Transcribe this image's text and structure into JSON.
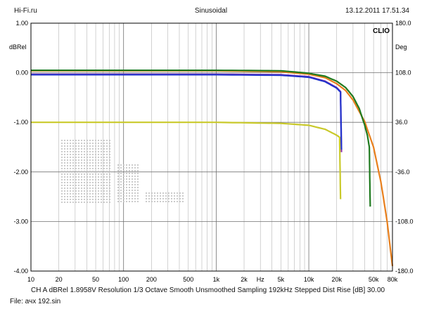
{
  "header": {
    "site": "Hi-Fi.ru",
    "mode": "Sinusoidal",
    "datetime": "13.12.2011 17.51.34"
  },
  "chart_data": {
    "type": "line",
    "xscale": "log",
    "xlim": [
      10,
      80000
    ],
    "ylim": [
      -4,
      1
    ],
    "y2lim": [
      -180,
      180
    ],
    "grid": true,
    "x_ticks": [
      {
        "v": 10,
        "label": "10"
      },
      {
        "v": 20,
        "label": "20"
      },
      {
        "v": 50,
        "label": "50"
      },
      {
        "v": 100,
        "label": "100"
      },
      {
        "v": 200,
        "label": "200"
      },
      {
        "v": 500,
        "label": "500"
      },
      {
        "v": 1000,
        "label": "1k"
      },
      {
        "v": 2000,
        "label": "2k"
      },
      {
        "v": 3000,
        "label": "Hz"
      },
      {
        "v": 5000,
        "label": "5k"
      },
      {
        "v": 10000,
        "label": "10k"
      },
      {
        "v": 20000,
        "label": "20k"
      },
      {
        "v": 50000,
        "label": "50k"
      },
      {
        "v": 80000,
        "label": "80k"
      }
    ],
    "y_ticks": [
      {
        "v": 1,
        "label": "1.00"
      },
      {
        "v": 0,
        "label": "0.00"
      },
      {
        "v": -1,
        "label": "-1.00"
      },
      {
        "v": -2,
        "label": "-2.00"
      },
      {
        "v": -3,
        "label": "-3.00"
      },
      {
        "v": -4,
        "label": "-4.00"
      }
    ],
    "y2_ticks": [
      {
        "v": 180,
        "label": "180.0"
      },
      {
        "v": 108,
        "label": "108.0"
      },
      {
        "v": 36,
        "label": "36.0"
      },
      {
        "v": -36,
        "label": "-36.0"
      },
      {
        "v": -108,
        "label": "-108.0"
      },
      {
        "v": -180,
        "label": "-180.0"
      }
    ],
    "ylabel": "dBRel",
    "y2label": "Deg",
    "brand": "CLIO",
    "series": [
      {
        "color": "#e87f1c",
        "points": [
          [
            10,
            0.04
          ],
          [
            1000,
            0.04
          ],
          [
            5000,
            0.02
          ],
          [
            10000,
            -0.03
          ],
          [
            15000,
            -0.1
          ],
          [
            20000,
            -0.22
          ],
          [
            25000,
            -0.36
          ],
          [
            30000,
            -0.55
          ],
          [
            40000,
            -0.98
          ],
          [
            50000,
            -1.5
          ],
          [
            60000,
            -2.2
          ],
          [
            70000,
            -3.0
          ],
          [
            80000,
            -3.9
          ]
        ]
      },
      {
        "color": "#1f7a1f",
        "points": [
          [
            10,
            0.05
          ],
          [
            1000,
            0.05
          ],
          [
            5000,
            0.04
          ],
          [
            10000,
            -0.01
          ],
          [
            15000,
            -0.07
          ],
          [
            20000,
            -0.17
          ],
          [
            25000,
            -0.3
          ],
          [
            30000,
            -0.48
          ],
          [
            35000,
            -0.72
          ],
          [
            40000,
            -1.05
          ],
          [
            43000,
            -1.27
          ],
          [
            45000,
            -1.5
          ],
          [
            46000,
            -2.7
          ]
        ]
      },
      {
        "color": "#8b2fa8",
        "points": [
          [
            10,
            -0.03
          ],
          [
            1000,
            -0.03
          ],
          [
            5000,
            -0.04
          ],
          [
            10000,
            -0.08
          ],
          [
            15000,
            -0.17
          ],
          [
            20000,
            -0.3
          ],
          [
            22000,
            -0.38
          ],
          [
            22500,
            -1.6
          ]
        ]
      },
      {
        "color": "#2233cc",
        "points": [
          [
            10,
            -0.04
          ],
          [
            1000,
            -0.04
          ],
          [
            5000,
            -0.05
          ],
          [
            10000,
            -0.09
          ],
          [
            15000,
            -0.18
          ],
          [
            20000,
            -0.31
          ],
          [
            22000,
            -0.39
          ],
          [
            22500,
            -1.55
          ]
        ]
      },
      {
        "color": "#c9c92a",
        "points": [
          [
            10,
            -1.0
          ],
          [
            1000,
            -1.0
          ],
          [
            5000,
            -1.02
          ],
          [
            10000,
            -1.06
          ],
          [
            15000,
            -1.14
          ],
          [
            20000,
            -1.26
          ],
          [
            21500,
            -1.3
          ],
          [
            22000,
            -2.55
          ]
        ]
      }
    ]
  },
  "footer": {
    "line1": "CH A   dBRel 1.8958V   Resolution 1/3 Octave   Smooth Unsmoothed   Sampling 192kHz   Stepped    Dist Rise [dB] 30.00",
    "line2": "File: ачх 192.sin"
  }
}
